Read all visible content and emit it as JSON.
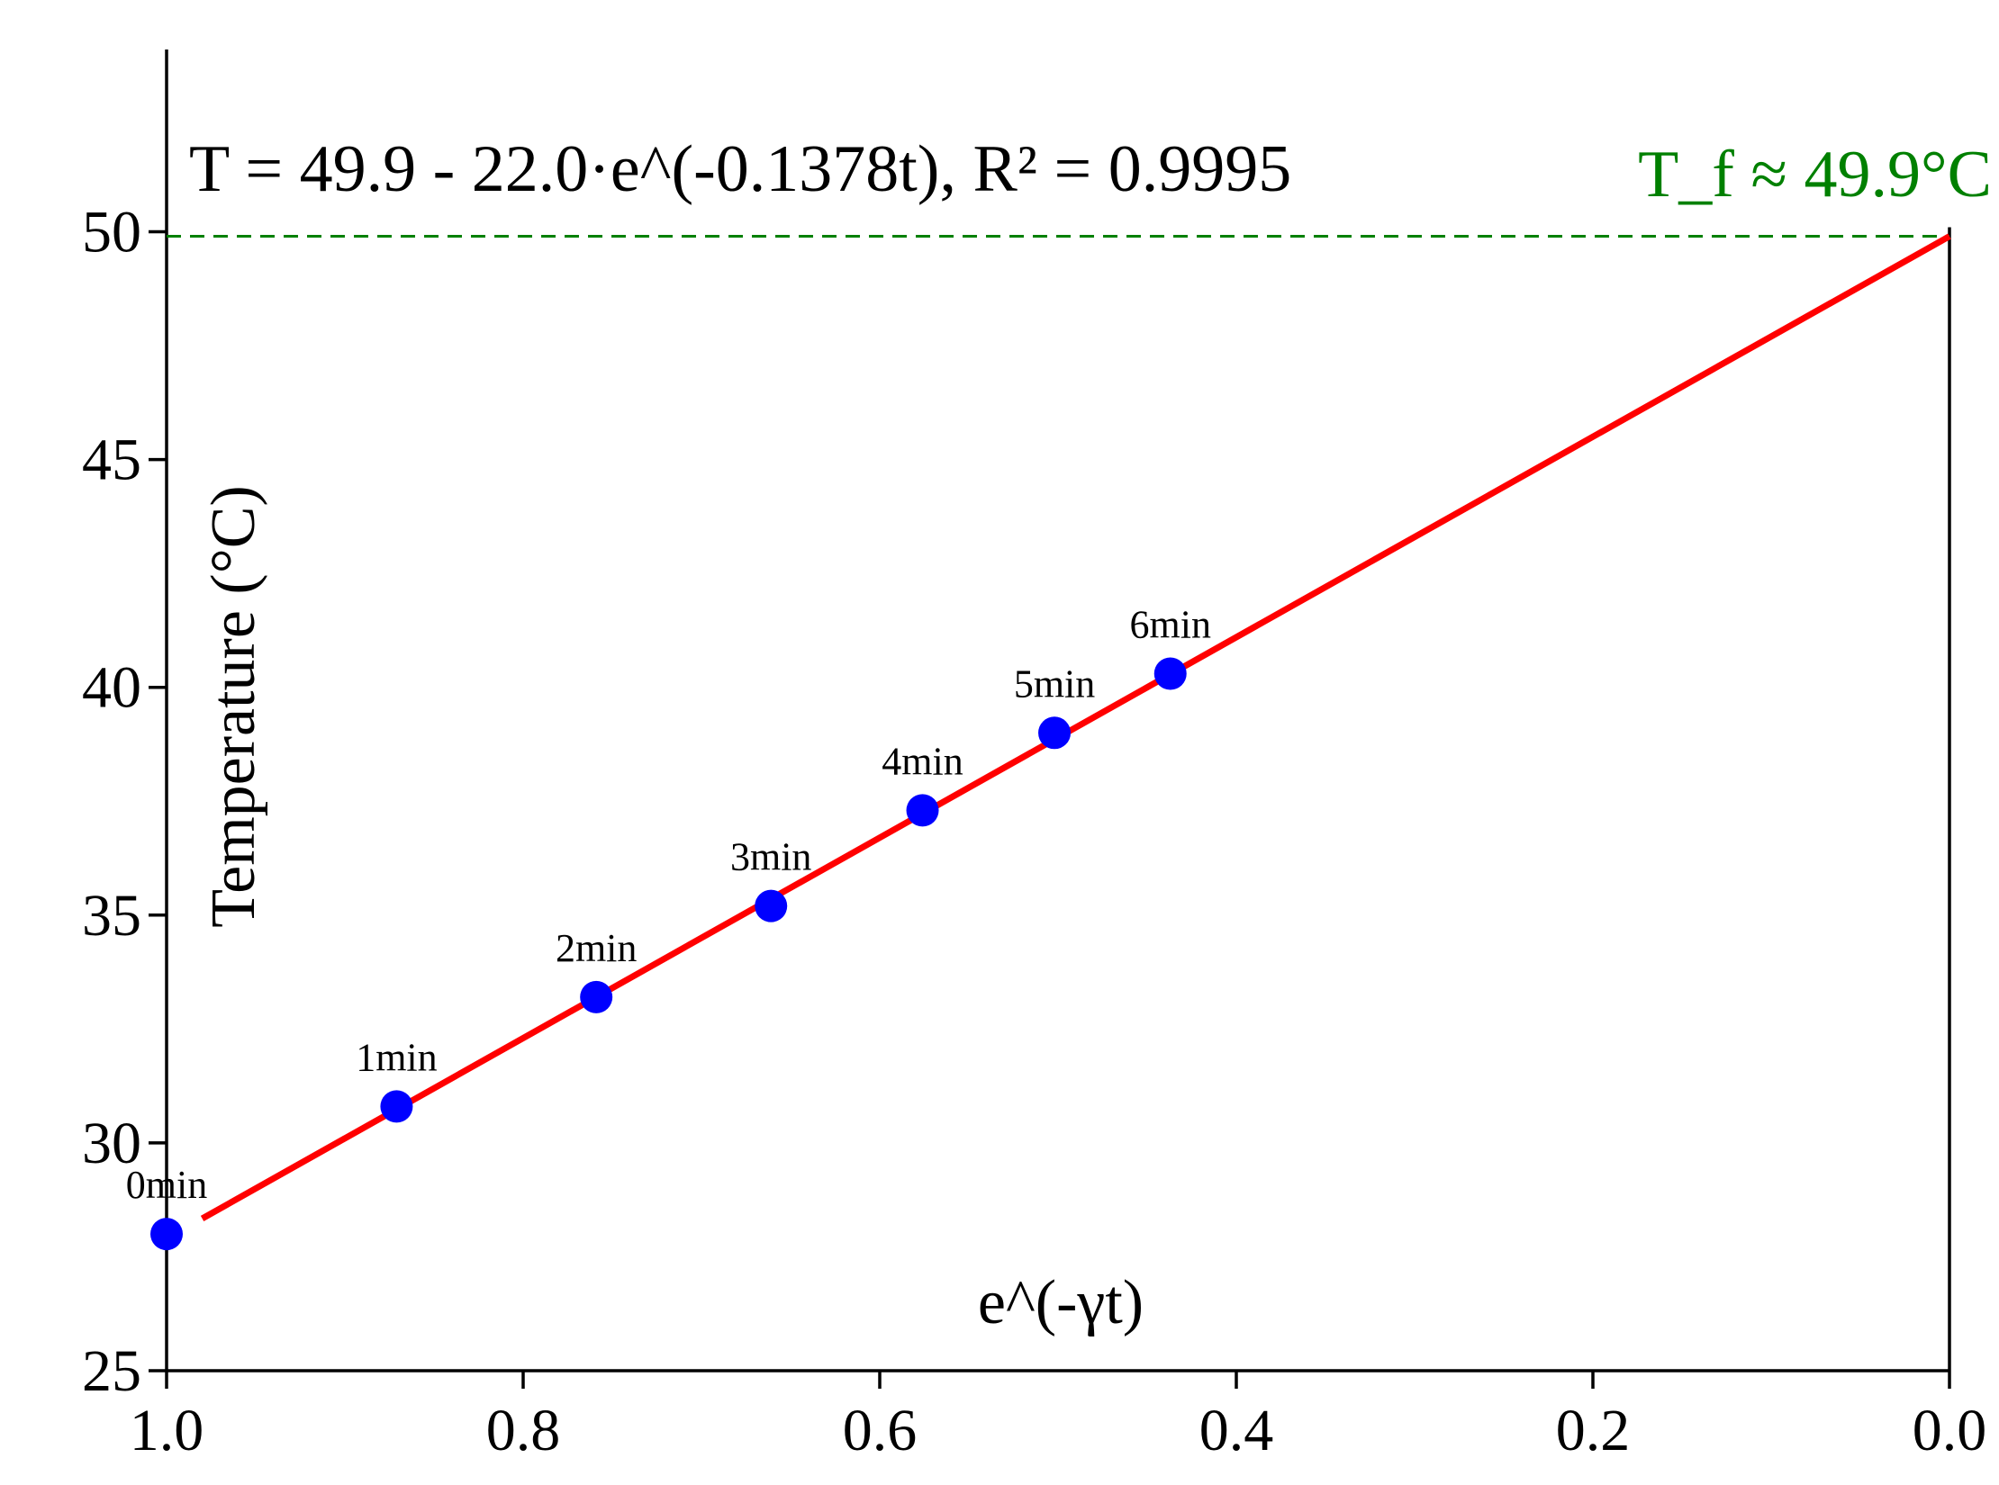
{
  "chart_data": {
    "type": "scatter",
    "title": "",
    "xlabel": "e^(-γt)",
    "ylabel": "Temperature (°C)",
    "xlim": [
      1.0,
      0.0
    ],
    "ylim": [
      25,
      54
    ],
    "x_ticks": [
      "1.0",
      "0.8",
      "0.6",
      "0.4",
      "0.2",
      "0.0"
    ],
    "y_ticks": [
      "25",
      "30",
      "35",
      "40",
      "45",
      "50"
    ],
    "grid": false,
    "x_axis_reversed": true,
    "series": [
      {
        "type": "scatter",
        "color": "#0000ff",
        "points": [
          {
            "x": 1.0,
            "y": 28.0,
            "label": "0min"
          },
          {
            "x": 0.871,
            "y": 30.8,
            "label": "1min"
          },
          {
            "x": 0.759,
            "y": 33.2,
            "label": "2min"
          },
          {
            "x": 0.661,
            "y": 35.2,
            "label": "3min"
          },
          {
            "x": 0.576,
            "y": 37.3,
            "label": "4min"
          },
          {
            "x": 0.502,
            "y": 39.0,
            "label": "5min"
          },
          {
            "x": 0.437,
            "y": 40.3,
            "label": "6min"
          }
        ]
      },
      {
        "type": "line",
        "color": "#ff0000",
        "x": [
          0.98,
          0.0
        ],
        "y": [
          28.34,
          49.9
        ]
      }
    ],
    "reference_line": {
      "y": 49.9,
      "color": "#008000",
      "style": "dashed",
      "label": "T_f ≈ 49.9°C"
    },
    "annotation": "T = 49.9 - 22.0·e^(-0.1378t), R² = 0.9995"
  }
}
